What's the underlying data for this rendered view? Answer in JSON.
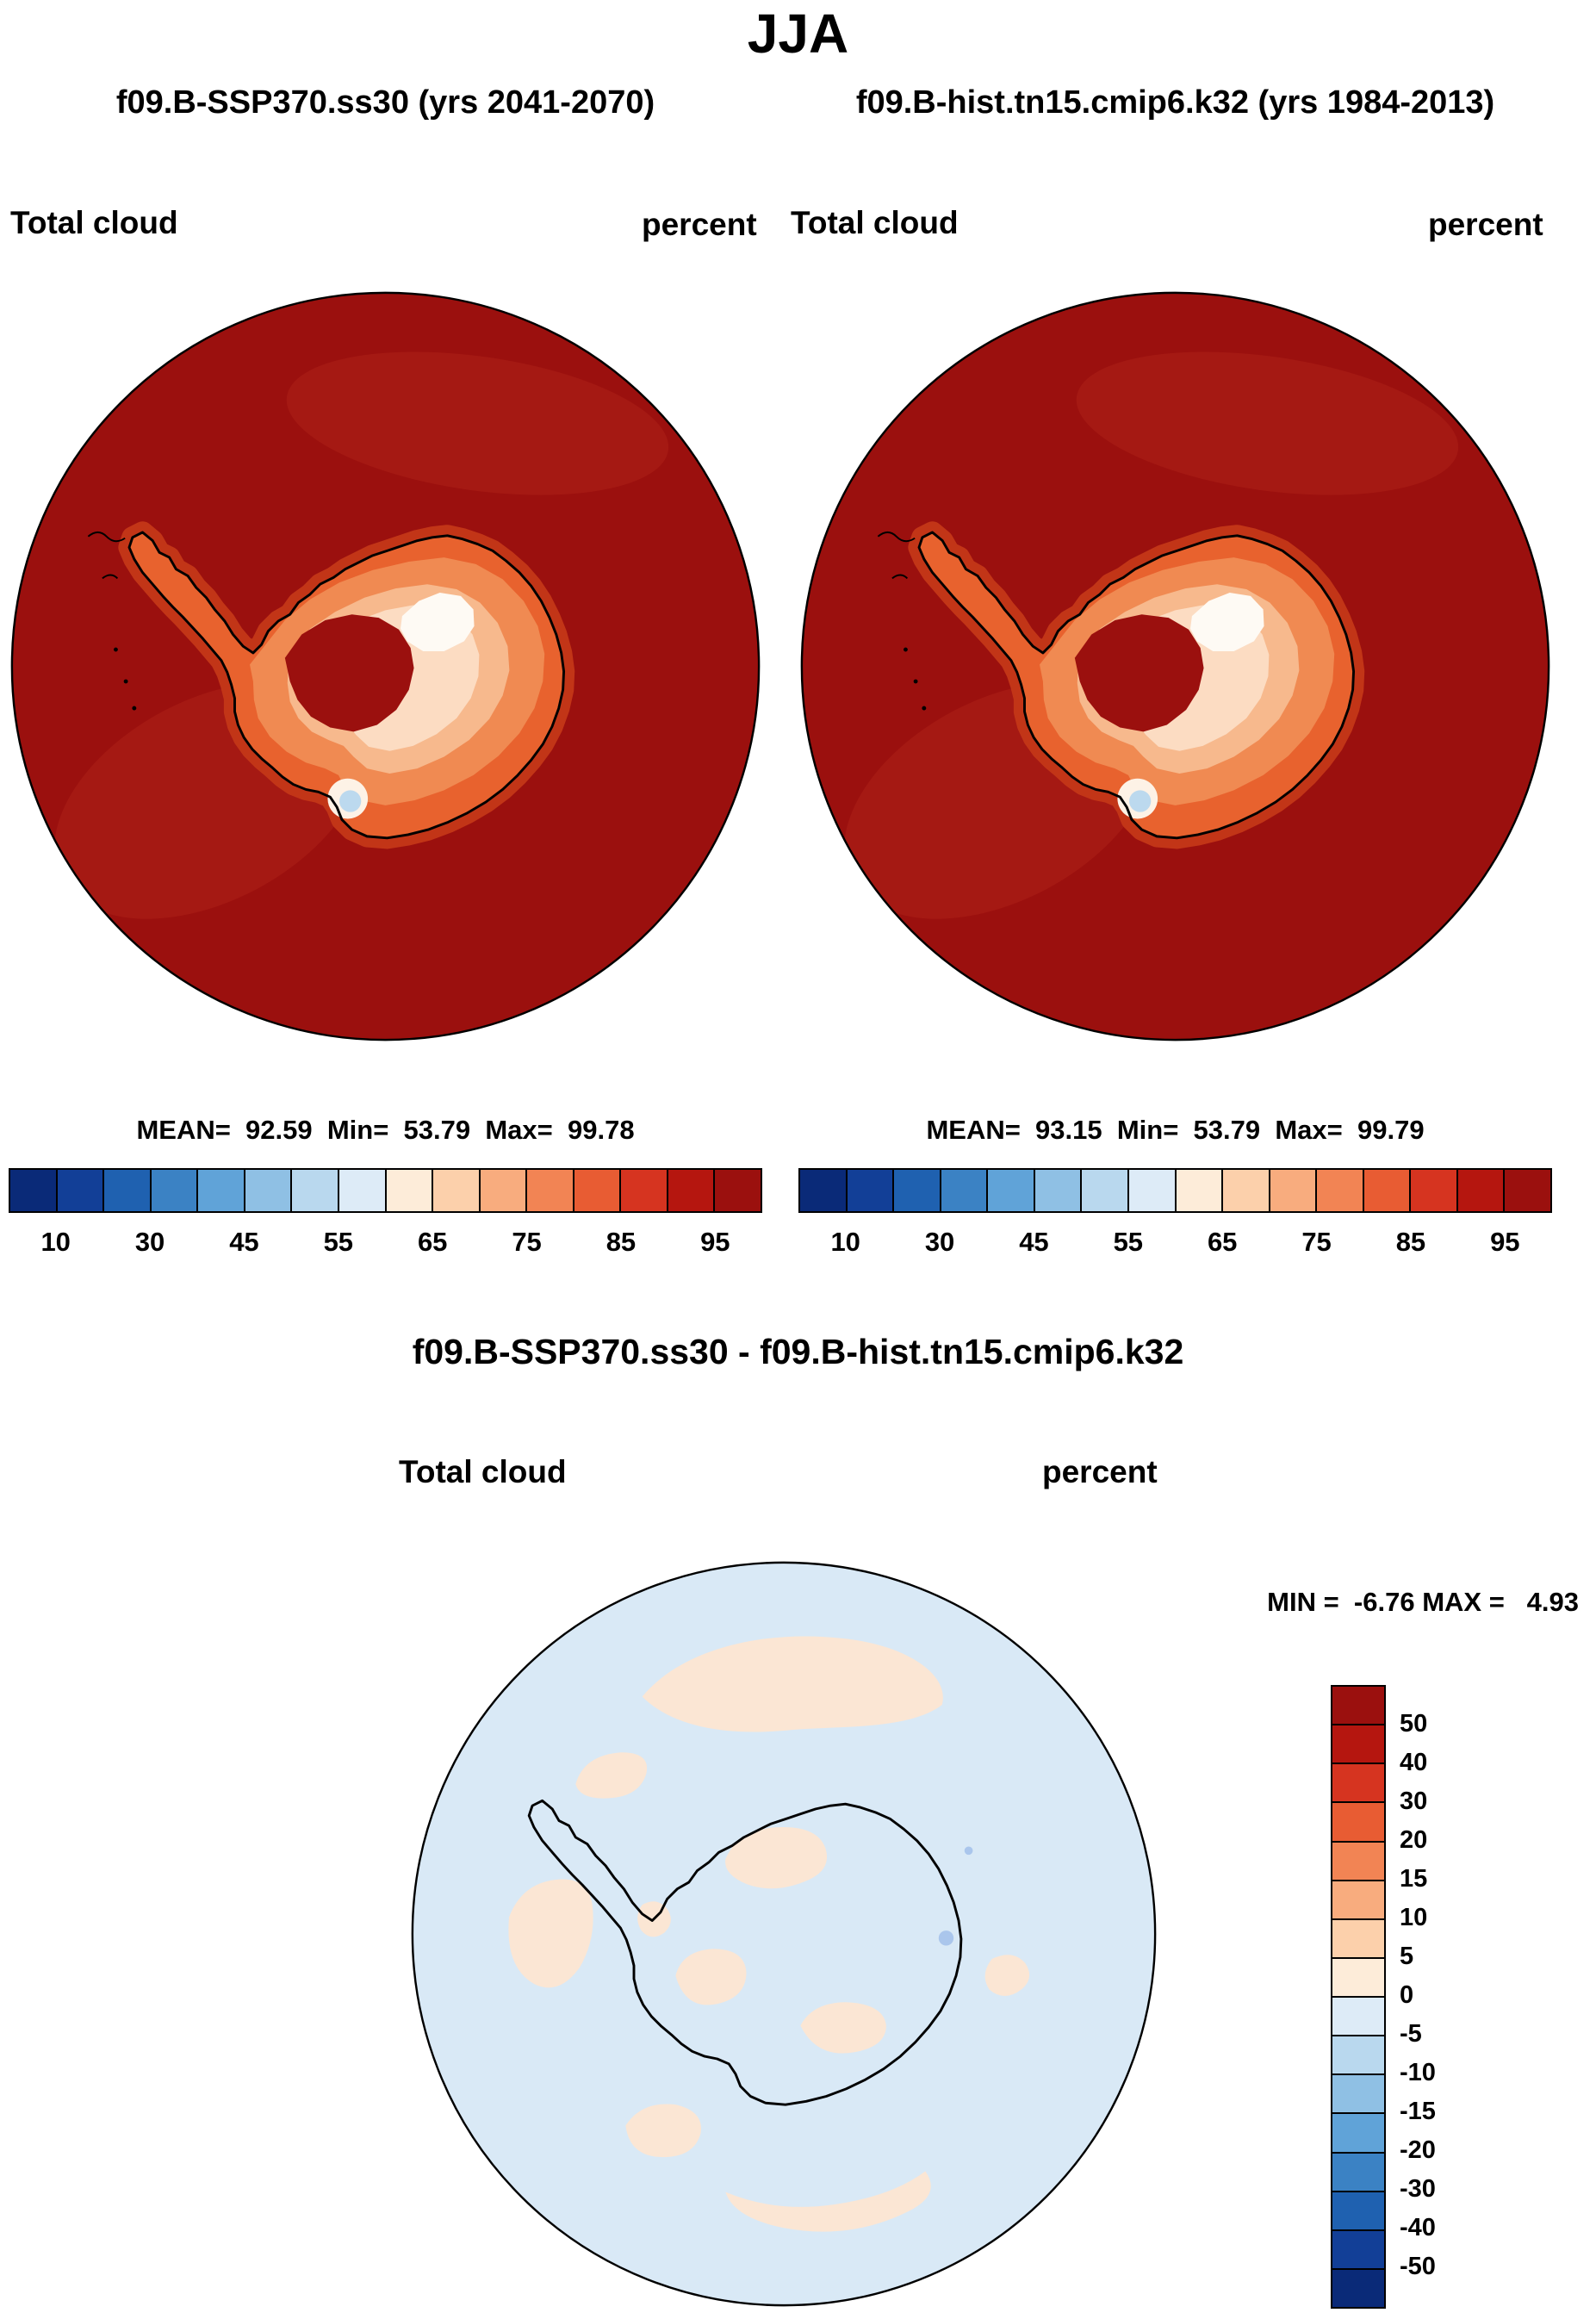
{
  "header": {
    "season_title": "JJA",
    "case_left_title": "f09.B-SSP370.ss30 (yrs 2041-2070)",
    "case_right_title": "f09.B-hist.tn15.cmip6.k32 (yrs 1984-2013)"
  },
  "panels": {
    "left": {
      "field_label": "Total cloud",
      "units_label": "percent",
      "stats_line": "MEAN=  92.59  Min=  53.79  Max=  99.78"
    },
    "right": {
      "field_label": "Total cloud",
      "units_label": "percent",
      "stats_line": "MEAN=  93.15  Min=  53.79  Max=  99.79"
    }
  },
  "cloud_colorbar": {
    "tick_labels": [
      "10",
      "30",
      "45",
      "55",
      "65",
      "75",
      "85",
      "95"
    ],
    "colors": [
      "#0a2a78",
      "#123f97",
      "#1f61b0",
      "#3b82c4",
      "#60a3d8",
      "#8fc0e4",
      "#b9d8ee",
      "#ddebf7",
      "#fdecd9",
      "#fcd0ab",
      "#f8ac7e",
      "#f28454",
      "#e85c33",
      "#d63420",
      "#b5160f",
      "#9b100e"
    ]
  },
  "diff_panel": {
    "title": "f09.B-SSP370.ss30 - f09.B-hist.tn15.cmip6.k32",
    "field_label": "Total cloud",
    "units_label": "percent",
    "minmax_line": "MIN =  -6.76 MAX =   4.93",
    "colorbar": {
      "tick_labels": [
        "50",
        "40",
        "30",
        "20",
        "15",
        "10",
        "5",
        "0",
        "-5",
        "-10",
        "-15",
        "-20",
        "-30",
        "-40",
        "-50"
      ],
      "colors": [
        "#9b100e",
        "#b5160f",
        "#d63420",
        "#e85c33",
        "#f28454",
        "#f8ac7e",
        "#fcd0ab",
        "#fdecd9",
        "#ddebf7",
        "#b9d8ee",
        "#8fc0e4",
        "#60a3d8",
        "#3b82c4",
        "#1f61b0",
        "#123f97",
        "#0a2a78"
      ]
    }
  },
  "chart_data": [
    {
      "type": "heatmap",
      "subtype": "south-polar-stereographic contour map",
      "season": "JJA",
      "title": "f09.B-SSP370.ss30 (yrs 2041-2070)",
      "field": "Total cloud",
      "units": "percent",
      "stats": {
        "mean": 92.59,
        "min": 53.79,
        "max": 99.78
      },
      "contour_levels": [
        10,
        20,
        30,
        40,
        45,
        50,
        55,
        60,
        65,
        70,
        75,
        80,
        85,
        90,
        95
      ],
      "legend_tick_labels": [
        10,
        30,
        45,
        55,
        65,
        75,
        85,
        95
      ],
      "legend_position": "bottom",
      "palette": "blue-to-darkred, ocean mostly >95 (dark red), coastal Antarctica 55-80 (orange/white band), interior plateau >95 (dark red), small <55 patch (pale blue) near Ross Sea"
    },
    {
      "type": "heatmap",
      "subtype": "south-polar-stereographic contour map",
      "season": "JJA",
      "title": "f09.B-hist.tn15.cmip6.k32 (yrs 1984-2013)",
      "field": "Total cloud",
      "units": "percent",
      "stats": {
        "mean": 93.15,
        "min": 53.79,
        "max": 99.79
      },
      "contour_levels": [
        10,
        20,
        30,
        40,
        45,
        50,
        55,
        60,
        65,
        70,
        75,
        80,
        85,
        90,
        95
      ],
      "legend_tick_labels": [
        10,
        30,
        45,
        55,
        65,
        75,
        85,
        95
      ],
      "legend_position": "bottom",
      "palette": "blue-to-darkred, nearly identical spatial pattern to left panel"
    },
    {
      "type": "heatmap",
      "subtype": "south-polar-stereographic difference map",
      "title": "f09.B-SSP370.ss30 - f09.B-hist.tn15.cmip6.k32",
      "field": "Total cloud",
      "units": "percent",
      "stats": {
        "min": -6.76,
        "max": 4.93
      },
      "contour_levels": [
        -50,
        -40,
        -30,
        -20,
        -15,
        -10,
        -5,
        0,
        5,
        10,
        15,
        20,
        30,
        40,
        50
      ],
      "legend_position": "right",
      "palette": "darkred-to-darkblue, field mostly -5..0 (pale blue) with scattered 0..5 (pale peach) patches"
    }
  ]
}
